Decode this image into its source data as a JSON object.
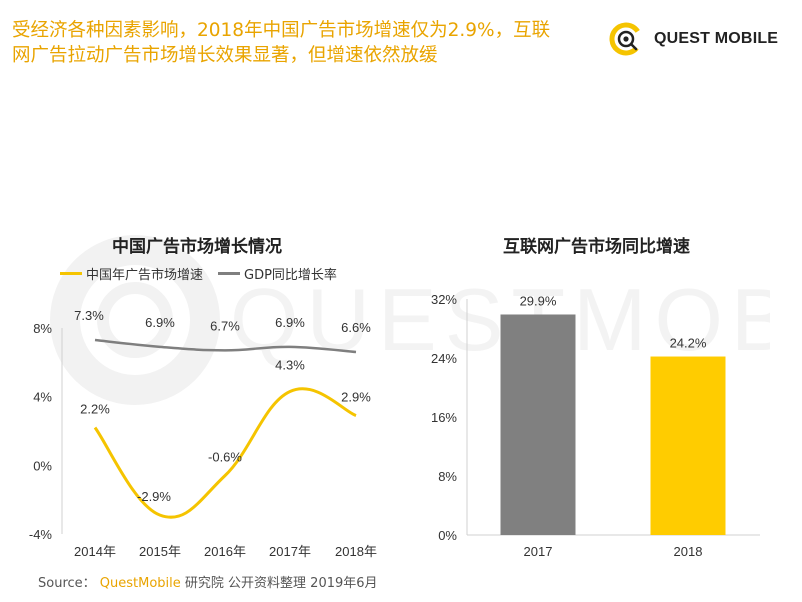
{
  "header": {
    "title_line1": "受经济各种因素影响，2018年中国广告市场增速仅为2.9%，互联",
    "title_line2": "网广告拉动广告市场增长效果显著，但增速依然放缓"
  },
  "logo": {
    "text": "QUEST MOBILE",
    "watermark_text": "QUESTMOBILE"
  },
  "colors": {
    "accent": "#f5c400",
    "title": "#e9a400",
    "gray_line": "#7f7f7f",
    "gray_bar": "#808080"
  },
  "chart_data": [
    {
      "type": "line",
      "title": "中国广告市场增长情况",
      "categories": [
        "2014年",
        "2015年",
        "2016年",
        "2017年",
        "2018年"
      ],
      "series": [
        {
          "name": "中国年广告市场增速",
          "values": [
            2.2,
            -2.9,
            -0.6,
            4.3,
            2.9
          ],
          "labels": [
            "2.2%",
            "-2.9%",
            "-0.6%",
            "4.3%",
            "2.9%"
          ],
          "color": "#f5c400"
        },
        {
          "name": "GDP同比增长率",
          "values": [
            7.3,
            6.9,
            6.7,
            6.9,
            6.6
          ],
          "labels": [
            "7.3%",
            "6.9%",
            "6.7%",
            "6.9%",
            "6.6%"
          ],
          "color": "#7f7f7f"
        }
      ],
      "yticks": [
        "8%",
        "4%",
        "0%",
        "-4%"
      ],
      "ylim": [
        -4,
        8
      ],
      "legend_position": "top-left",
      "grid": false
    },
    {
      "type": "bar",
      "title": "互联网广告市场同比增速",
      "categories": [
        "2017",
        "2018"
      ],
      "values": [
        29.9,
        24.2
      ],
      "labels": [
        "29.9%",
        "24.2%"
      ],
      "colors": [
        "#808080",
        "#ffcc00"
      ],
      "yticks": [
        "32%",
        "24%",
        "16%",
        "8%",
        "0%"
      ],
      "ylim": [
        0,
        32
      ],
      "grid": false
    }
  ],
  "footer": {
    "source_prefix": "Source：",
    "source_brand": "QuestMobile",
    "source_rest": " 研究院 公开资料整理 2019年6月"
  }
}
